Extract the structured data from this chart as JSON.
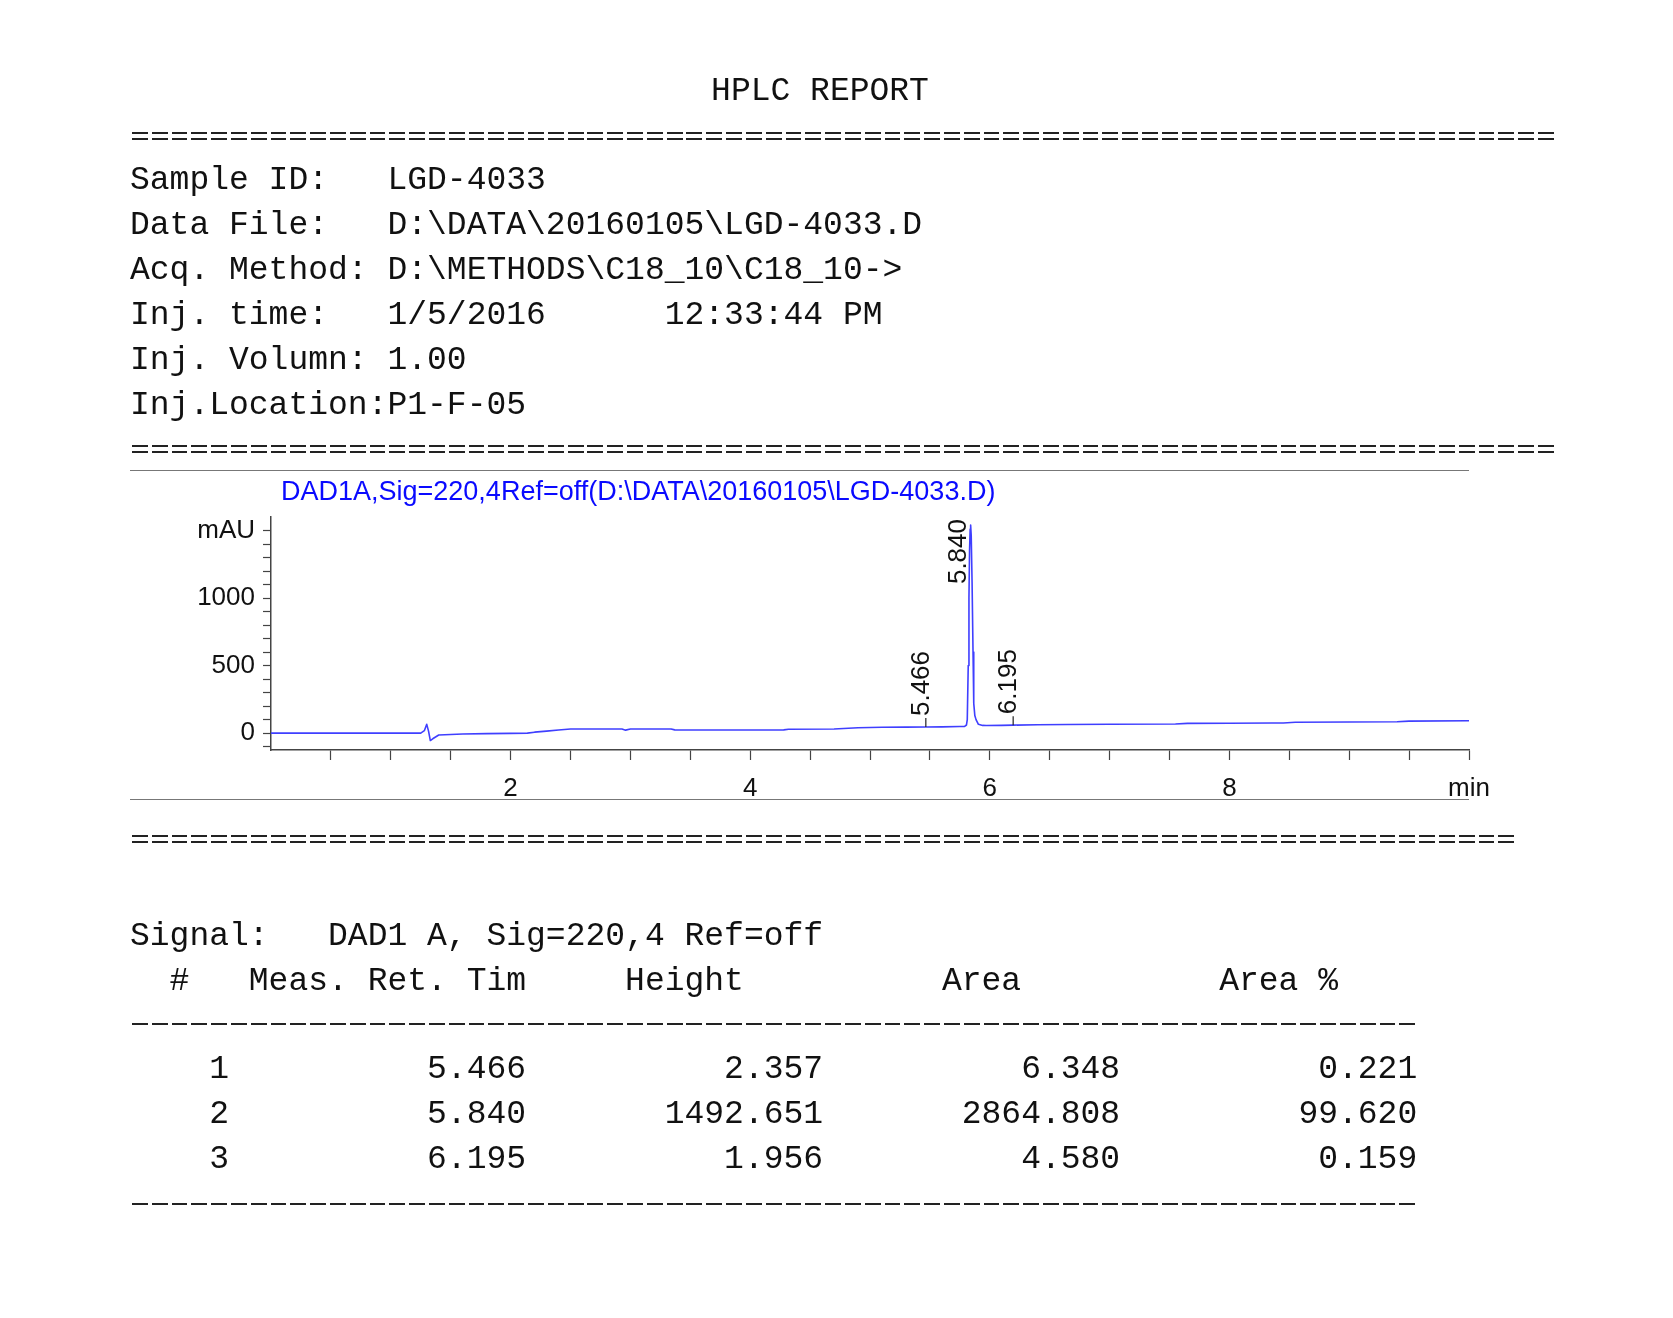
{
  "chart_data": {
    "type": "line",
    "title": "HPLC REPORT",
    "subtitle": "DAD1A,Sig=220,4Ref=off(D:\\DATA\\20160105\\LGD-4033.D)",
    "x": [
      0,
      0.5,
      1,
      1.25,
      1.28,
      1.3,
      1.315,
      1.33,
      1.35,
      1.4,
      1.6,
      1.8,
      2,
      2.14,
      2.2,
      2.3,
      2.4,
      2.5,
      2.7,
      2.93,
      2.96,
      3,
      3.34,
      3.37,
      3.7,
      4,
      4.28,
      4.32,
      4.7,
      4.9,
      5.1,
      5.3,
      5.466,
      5.6,
      5.75,
      5.79,
      5.805,
      5.812,
      5.82,
      5.826,
      5.831,
      5.836,
      5.84,
      5.845,
      5.852,
      5.86,
      5.866,
      5.875,
      5.885,
      5.905,
      5.94,
      5.97,
      6.1,
      6.195,
      6.4,
      6.65,
      7,
      7.55,
      7.65,
      8,
      8.45,
      8.55,
      9,
      9.4,
      9.5,
      10
    ],
    "values": [
      0,
      0,
      0,
      0,
      18,
      65,
      15,
      -55,
      -42,
      -14,
      -6,
      -4,
      -2,
      0,
      7,
      15,
      23,
      30,
      31,
      30,
      22,
      30,
      30,
      24,
      23,
      23,
      24,
      29,
      31,
      40,
      43,
      44,
      45,
      46,
      49,
      50,
      60,
      100,
      500,
      1000,
      1350,
      1510,
      1540,
      1460,
      1120,
      600,
      220,
      130,
      100,
      65,
      57,
      56,
      57,
      59,
      62,
      64,
      66,
      67,
      72,
      73,
      75,
      80,
      82,
      84,
      89,
      92
    ],
    "color": "#3f3fff",
    "xlim": [
      0,
      10
    ],
    "ylim": [
      -125,
      1600
    ],
    "xticks": [
      {
        "value": 0.5,
        "label": null
      },
      {
        "value": 1,
        "label": null
      },
      {
        "value": 1.5,
        "label": null
      },
      2,
      {
        "value": 2.5,
        "label": null
      },
      {
        "value": 3,
        "label": null
      },
      {
        "value": 3.5,
        "label": null
      },
      4,
      {
        "value": 4.5,
        "label": null
      },
      {
        "value": 5,
        "label": null
      },
      {
        "value": 5.5,
        "label": null
      },
      6,
      {
        "value": 6.5,
        "label": null
      },
      {
        "value": 7,
        "label": null
      },
      {
        "value": 7.5,
        "label": null
      },
      8,
      {
        "value": 8.5,
        "label": null
      },
      {
        "value": 9,
        "label": null
      },
      {
        "value": 9.5,
        "label": null
      },
      {
        "value": 10,
        "label": "min"
      }
    ],
    "yticks": [
      {
        "value": -100,
        "label": null
      },
      0,
      {
        "value": 100,
        "label": null
      },
      {
        "value": 200,
        "label": null
      },
      {
        "value": 300,
        "label": null
      },
      {
        "value": 400,
        "label": null
      },
      500,
      {
        "value": 600,
        "label": null
      },
      {
        "value": 700,
        "label": null
      },
      {
        "value": 800,
        "label": null
      },
      {
        "value": 900,
        "label": null
      },
      1000,
      {
        "value": 1100,
        "label": null
      },
      {
        "value": 1200,
        "label": null
      },
      {
        "value": 1300,
        "label": null
      },
      {
        "value": 1400,
        "label": null
      },
      {
        "value": 1500,
        "label": "mAU"
      }
    ],
    "marker": "none",
    "line_style": "solid",
    "annotations": [
      "Sample ID:   LGD-4033",
      "Data File:   D:\\DATA\\20160105\\LGD-4033.D",
      "Acq. Method: D:\\METHODS\\C18_10\\C18_10->",
      "Inj. time:   1/5/2016      12:33:44 PM",
      "Inj. Volumn: 1.00",
      "Inj.Location:P1-F-05",
      "Signal:   DAD1 A, Sig=220,4 Ref=off",
      "  #   Meas. Ret. Tim     Height          Area          Area %",
      "    1          5.466          2.357          6.348          0.221",
      "    2          5.840       1492.651       2864.808         99.620",
      "    3          6.195          1.956          4.580          0.159",
      {
        "text": "5.466",
        "x": 5.466,
        "y": 45
      },
      {
        "text": "5.840",
        "x": 5.84,
        "y": 1540
      },
      {
        "text": "6.195",
        "x": 6.195,
        "y": 59
      }
    ]
  }
}
